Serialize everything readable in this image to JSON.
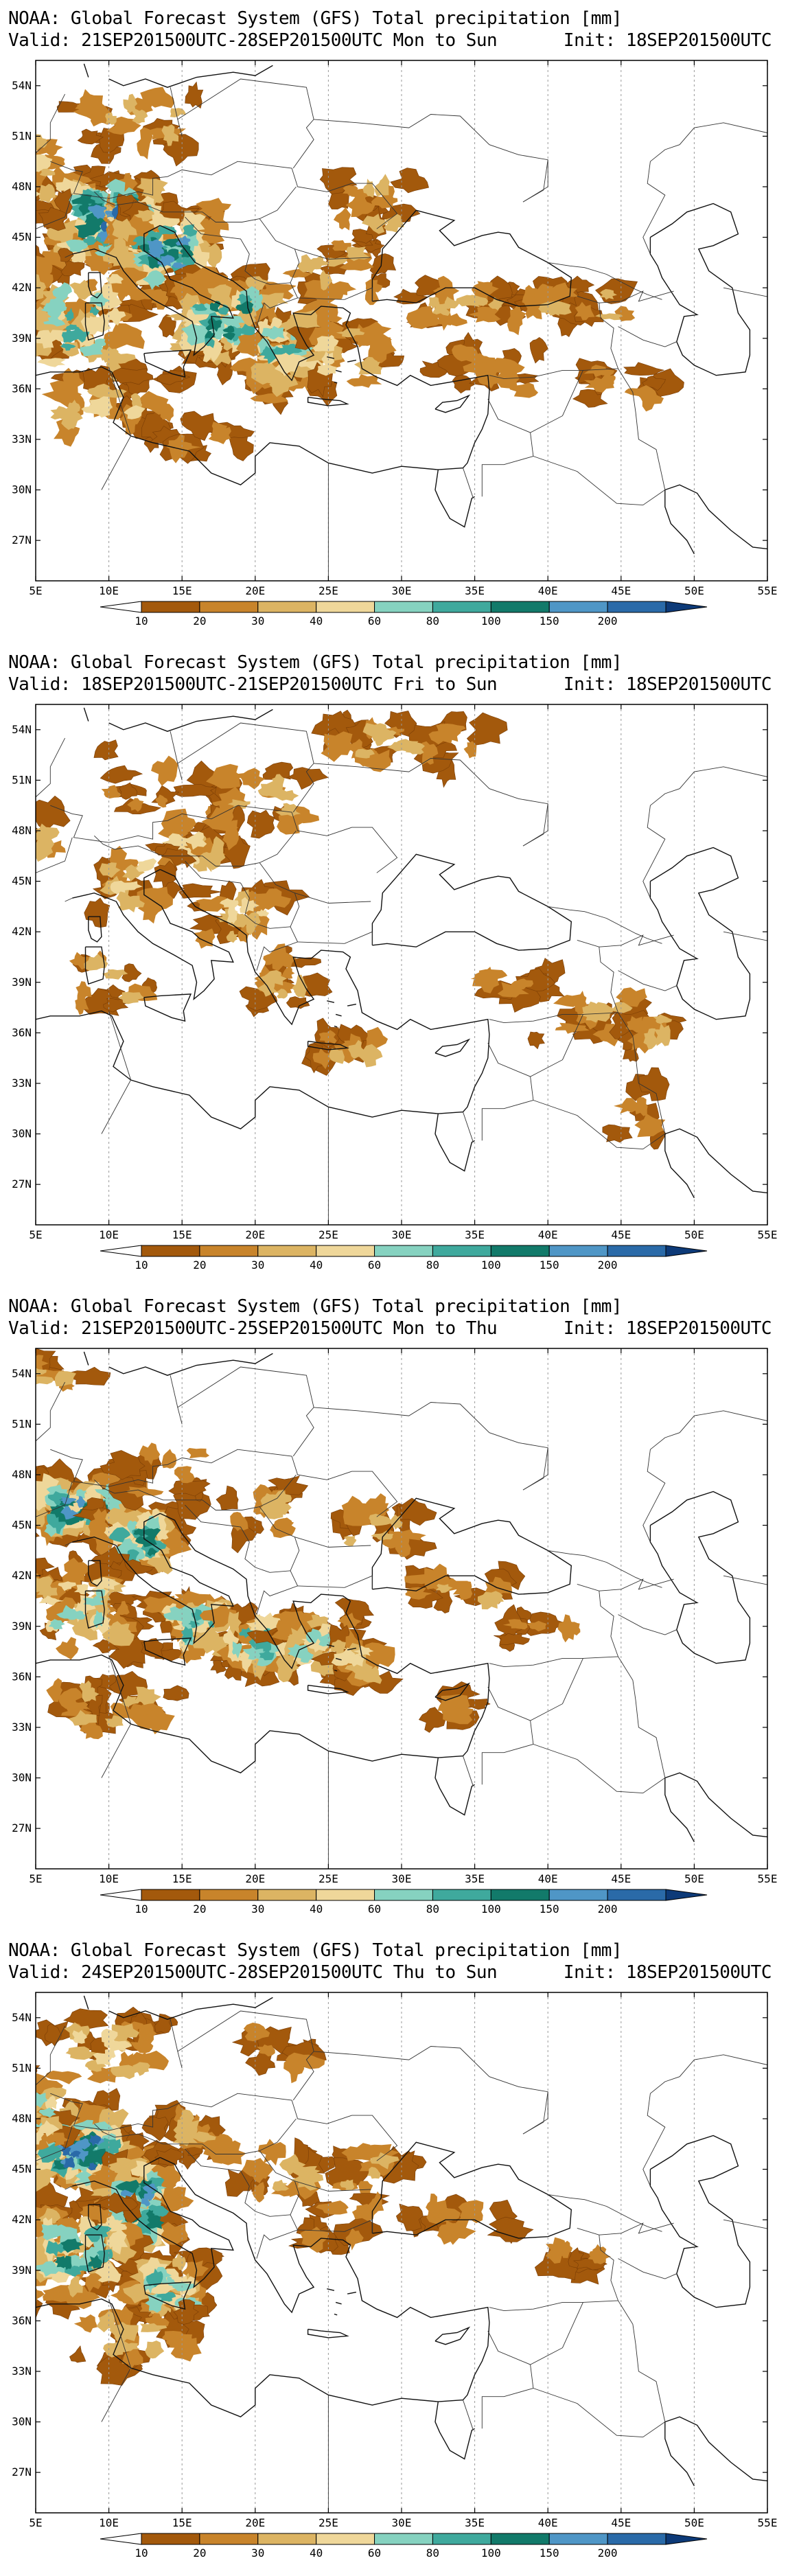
{
  "color_scale": {
    "boundaries": [
      "10",
      "20",
      "30",
      "40",
      "60",
      "80",
      "100",
      "150",
      "200"
    ],
    "colors": [
      "#a3590c",
      "#c8842b",
      "#dcb463",
      "#efd79a",
      "#86d2c0",
      "#3fa99d",
      "#127a6a",
      "#4f96c6",
      "#2a6aa8",
      "#0d3a78"
    ],
    "under_color": "#ffffff",
    "over_color": "#0d3a78"
  },
  "axes": {
    "lon_ticks": [
      "5E",
      "10E",
      "15E",
      "20E",
      "25E",
      "30E",
      "35E",
      "40E",
      "45E",
      "50E",
      "55E"
    ],
    "lat_ticks": [
      "54N",
      "51N",
      "48N",
      "45N",
      "42N",
      "39N",
      "36N",
      "33N",
      "30N",
      "27N"
    ]
  },
  "panels": [
    {
      "title": "NOAA: Global Forecast System (GFS) Total precipitation [mm]",
      "valid": "Valid: 21SEP201500UTC-28SEP201500UTC Mon to Sun",
      "init": "Init: 18SEP201500UTC"
    },
    {
      "title": "NOAA: Global Forecast System (GFS) Total precipitation [mm]",
      "valid": "Valid: 18SEP201500UTC-21SEP201500UTC Fri to Sun",
      "init": "Init: 18SEP201500UTC"
    },
    {
      "title": "NOAA: Global Forecast System (GFS) Total precipitation [mm]",
      "valid": "Valid: 21SEP201500UTC-25SEP201500UTC Mon to Thu",
      "init": "Init: 18SEP201500UTC"
    },
    {
      "title": "NOAA: Global Forecast System (GFS) Total precipitation [mm]",
      "valid": "Valid: 24SEP201500UTC-28SEP201500UTC Thu to Sun",
      "init": "Init: 18SEP201500UTC"
    }
  ]
}
